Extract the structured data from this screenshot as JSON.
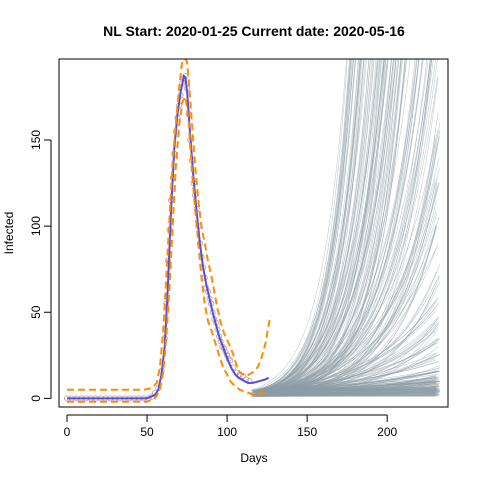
{
  "chart_data": {
    "type": "line",
    "title": "NL Start:  2020-01-25   Current date:  2020-05-16",
    "xlabel": "Days",
    "ylabel": "Infected",
    "xlim": [
      -5,
      238
    ],
    "ylim": [
      -5,
      197
    ],
    "x_ticks": [
      0,
      50,
      100,
      150,
      200
    ],
    "y_ticks": [
      0,
      50,
      100,
      150
    ],
    "grid": false,
    "legend": "none",
    "colors": {
      "observed": "#c8a0a8",
      "fitted": "#5050e0",
      "bounds": "#ff8c00",
      "simulations": "#8e9ea6"
    },
    "series": [
      {
        "type": "scatter",
        "points": [
          [
            0,
            0
          ],
          [
            3,
            0
          ],
          [
            6,
            0
          ],
          [
            9,
            0
          ],
          [
            12,
            0
          ],
          [
            15,
            0
          ],
          [
            18,
            0
          ],
          [
            21,
            0
          ],
          [
            24,
            0
          ],
          [
            27,
            0
          ],
          [
            30,
            0
          ],
          [
            33,
            0
          ],
          [
            36,
            0
          ],
          [
            39,
            0
          ],
          [
            42,
            0
          ],
          [
            45,
            0
          ],
          [
            48,
            0
          ],
          [
            51,
            0
          ],
          [
            53,
            1
          ],
          [
            55,
            3
          ],
          [
            57,
            6
          ],
          [
            59,
            16
          ],
          [
            61,
            35
          ],
          [
            62,
            55
          ],
          [
            63,
            80
          ],
          [
            64,
            98
          ],
          [
            65,
            115
          ],
          [
            66,
            128
          ],
          [
            67,
            142
          ],
          [
            68,
            155
          ],
          [
            69,
            163
          ],
          [
            70,
            170
          ],
          [
            71,
            176
          ],
          [
            72,
            183
          ],
          [
            73,
            186
          ],
          [
            74,
            187
          ],
          [
            75,
            180
          ],
          [
            76,
            165
          ],
          [
            77,
            150
          ],
          [
            78,
            138
          ],
          [
            79,
            125
          ],
          [
            80,
            118
          ],
          [
            81,
            110
          ],
          [
            82,
            100
          ],
          [
            83,
            90
          ],
          [
            84,
            82
          ],
          [
            85,
            76
          ],
          [
            86,
            70
          ],
          [
            87,
            64
          ],
          [
            88,
            62
          ],
          [
            89,
            58
          ],
          [
            90,
            55
          ],
          [
            91,
            50
          ],
          [
            92,
            46
          ],
          [
            93,
            44
          ],
          [
            94,
            40
          ],
          [
            95,
            36
          ],
          [
            96,
            33
          ],
          [
            97,
            30
          ],
          [
            98,
            29
          ],
          [
            99,
            27
          ],
          [
            100,
            25
          ],
          [
            101,
            23
          ],
          [
            102,
            22
          ],
          [
            104,
            18
          ],
          [
            106,
            15
          ],
          [
            108,
            14
          ],
          [
            110,
            13
          ],
          [
            112,
            11
          ],
          [
            114,
            10
          ]
        ]
      },
      {
        "type": "line",
        "points": [
          [
            0,
            0
          ],
          [
            40,
            0
          ],
          [
            50,
            0
          ],
          [
            55,
            2
          ],
          [
            57,
            5
          ],
          [
            59,
            14
          ],
          [
            61,
            30
          ],
          [
            63,
            65
          ],
          [
            65,
            110
          ],
          [
            67,
            145
          ],
          [
            69,
            165
          ],
          [
            71,
            178
          ],
          [
            73,
            187
          ],
          [
            74,
            186
          ],
          [
            75,
            178
          ],
          [
            77,
            152
          ],
          [
            79,
            128
          ],
          [
            81,
            108
          ],
          [
            83,
            90
          ],
          [
            85,
            76
          ],
          [
            87,
            66
          ],
          [
            89,
            58
          ],
          [
            91,
            50
          ],
          [
            93,
            43
          ],
          [
            95,
            36
          ],
          [
            97,
            31
          ],
          [
            99,
            26
          ],
          [
            101,
            21
          ],
          [
            103,
            17
          ],
          [
            105,
            14
          ],
          [
            107,
            12
          ],
          [
            109,
            11
          ],
          [
            111,
            10
          ],
          [
            113,
            9
          ],
          [
            116,
            9
          ],
          [
            120,
            10
          ],
          [
            124,
            11
          ],
          [
            126,
            12
          ]
        ]
      },
      {
        "type": "line",
        "points": [
          [
            0,
            5
          ],
          [
            48,
            5
          ],
          [
            53,
            6
          ],
          [
            56,
            9
          ],
          [
            58,
            18
          ],
          [
            60,
            38
          ],
          [
            62,
            70
          ],
          [
            64,
            105
          ],
          [
            66,
            138
          ],
          [
            68,
            160
          ],
          [
            70,
            180
          ],
          [
            72,
            196
          ],
          [
            74,
            197
          ],
          [
            75,
            195
          ],
          [
            76,
            185
          ],
          [
            78,
            160
          ],
          [
            80,
            135
          ],
          [
            82,
            115
          ],
          [
            84,
            100
          ],
          [
            86,
            90
          ],
          [
            88,
            80
          ],
          [
            90,
            72
          ],
          [
            92,
            62
          ],
          [
            94,
            52
          ],
          [
            96,
            44
          ],
          [
            98,
            38
          ],
          [
            100,
            34
          ],
          [
            102,
            30
          ],
          [
            104,
            25
          ],
          [
            106,
            19
          ],
          [
            108,
            15
          ],
          [
            110,
            14
          ],
          [
            112,
            13
          ],
          [
            114,
            14
          ],
          [
            116,
            15
          ],
          [
            119,
            18
          ],
          [
            121,
            22
          ],
          [
            124,
            32
          ],
          [
            127,
            48
          ]
        ]
      },
      {
        "type": "line",
        "points": [
          [
            0,
            -2
          ],
          [
            50,
            -2
          ],
          [
            55,
            0
          ],
          [
            58,
            5
          ],
          [
            60,
            15
          ],
          [
            62,
            35
          ],
          [
            64,
            65
          ],
          [
            66,
            100
          ],
          [
            68,
            135
          ],
          [
            70,
            158
          ],
          [
            72,
            172
          ],
          [
            74,
            175
          ],
          [
            76,
            160
          ],
          [
            78,
            132
          ],
          [
            80,
            110
          ],
          [
            82,
            90
          ],
          [
            84,
            70
          ],
          [
            86,
            55
          ],
          [
            88,
            45
          ],
          [
            90,
            40
          ],
          [
            92,
            34
          ],
          [
            94,
            28
          ],
          [
            96,
            22
          ],
          [
            98,
            17
          ],
          [
            100,
            14
          ],
          [
            102,
            10
          ],
          [
            105,
            7
          ],
          [
            108,
            5
          ],
          [
            111,
            4
          ],
          [
            114,
            3
          ],
          [
            116,
            2
          ],
          [
            118,
            2
          ],
          [
            121,
            3
          ],
          [
            125,
            3
          ]
        ]
      }
    ]
  }
}
